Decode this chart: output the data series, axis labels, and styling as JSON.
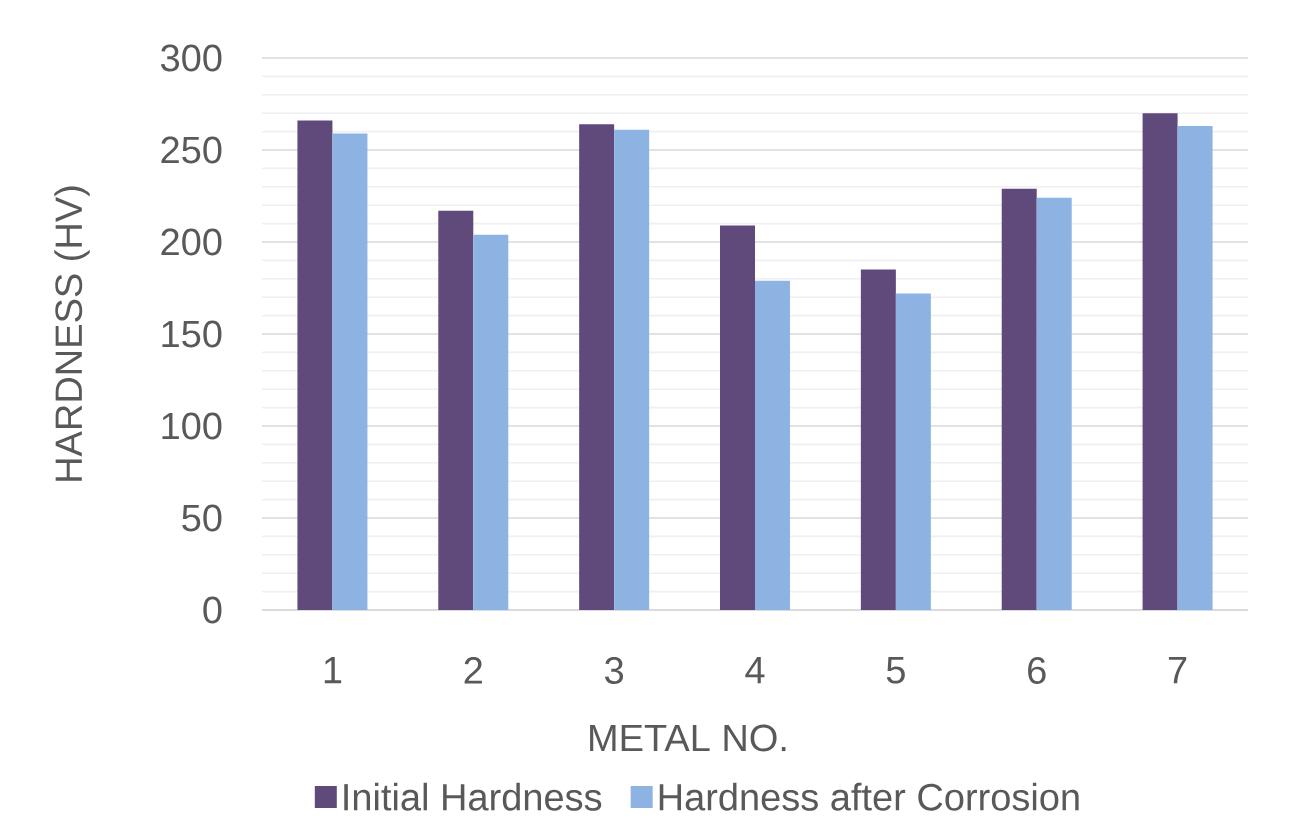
{
  "chart_data": {
    "type": "bar",
    "xlabel": "METAL NO.",
    "ylabel": "HARDNESS (HV)",
    "categories": [
      "1",
      "2",
      "3",
      "4",
      "5",
      "6",
      "7"
    ],
    "series": [
      {
        "name": "Initial Hardness",
        "color": "#604a7b",
        "values": [
          266,
          217,
          264,
          209,
          185,
          229,
          270
        ]
      },
      {
        "name": "Hardness after Corrosion",
        "color": "#8db3e2",
        "values": [
          259,
          204,
          261,
          179,
          172,
          224,
          263
        ]
      }
    ],
    "ylim": [
      0,
      300
    ],
    "yticks": [
      0,
      50,
      100,
      150,
      200,
      250,
      300
    ],
    "grid": "y",
    "legend": "bottom"
  }
}
